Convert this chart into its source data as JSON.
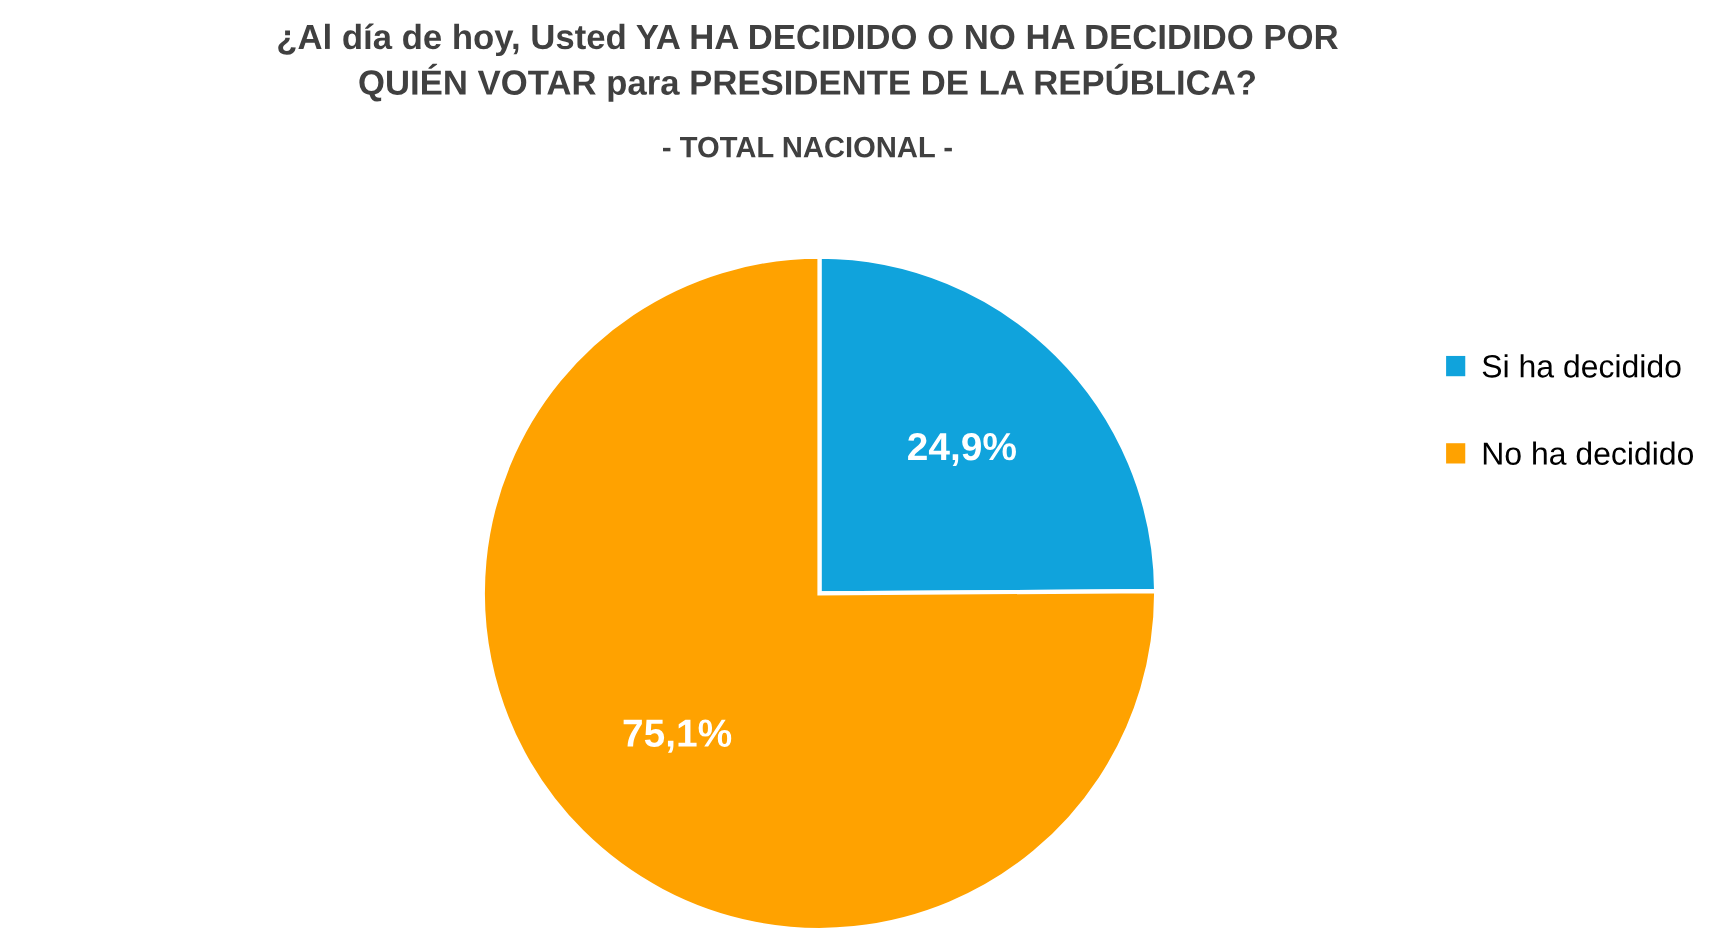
{
  "chart_data": {
    "type": "pie",
    "title": "¿Al día de hoy, Usted YA HA DECIDIDO O NO HA DECIDIDO POR\nQUIÉN VOTAR para PRESIDENTE DE LA REPÚBLICA?",
    "subtitle": "- TOTAL NACIONAL -",
    "categories": [
      "Si ha decidido",
      "No ha decidido"
    ],
    "values": [
      24.9,
      75.1
    ],
    "value_labels": [
      "24,9%",
      "75,1%"
    ],
    "colors": [
      "#10a3dc",
      "#ffa200"
    ],
    "legend": "right"
  }
}
